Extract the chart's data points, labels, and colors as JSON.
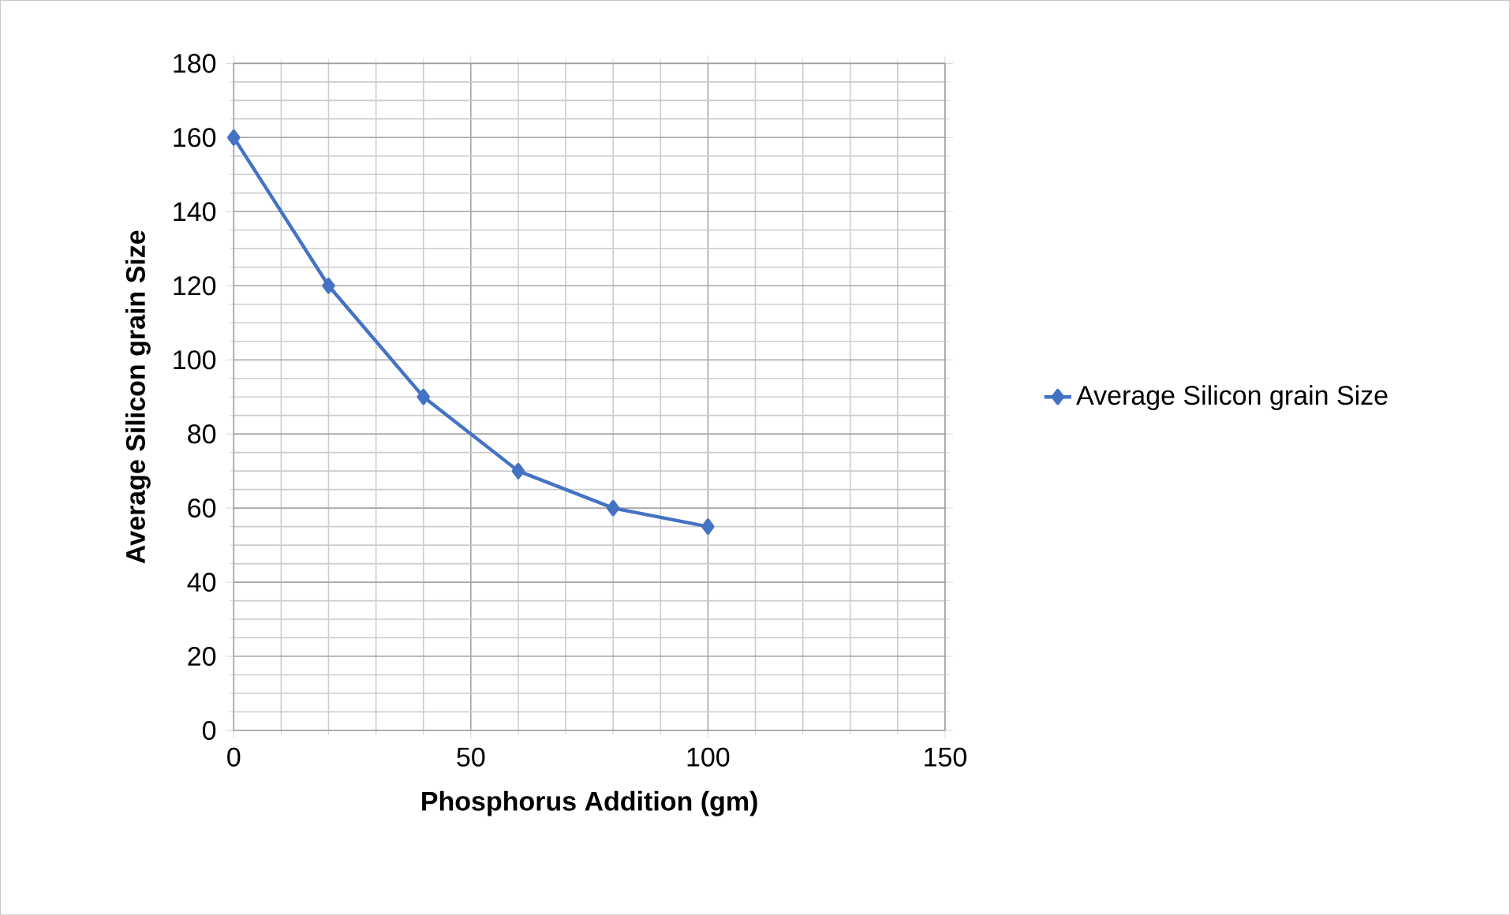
{
  "chart_data": {
    "type": "line",
    "xlabel": "Phosphorus Addition (gm)",
    "ylabel": "Average Silicon grain Size",
    "x": [
      0,
      20,
      40,
      60,
      80,
      100
    ],
    "series": [
      {
        "name": "Average Silicon grain Size",
        "color": "#4472c4",
        "values": [
          160,
          120,
          90,
          70,
          60,
          55
        ]
      }
    ],
    "xlim": [
      0,
      150
    ],
    "xticks": [
      0,
      50,
      100,
      150
    ],
    "ylim": [
      0,
      180
    ],
    "yticks": [
      0,
      20,
      40,
      60,
      80,
      100,
      120,
      140,
      160,
      180
    ],
    "grid": true,
    "legend": "right",
    "marker": "diamond",
    "line_style": "solid"
  }
}
